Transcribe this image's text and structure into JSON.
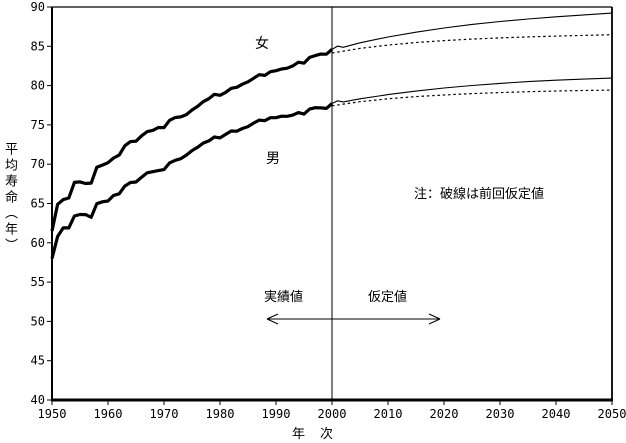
{
  "labels": {
    "female_series": "女",
    "male_series": "男",
    "note": "注：破線は前回仮定値",
    "actual_values": "実績値",
    "assumed_values": "仮定値",
    "xaxis_title": "年　次",
    "yaxis_title": "平均寿命（年）"
  },
  "colors": {
    "line": "#000000",
    "background": "#ffffff"
  },
  "chart_data": {
    "type": "line",
    "title": "",
    "xlabel": "年　次",
    "ylabel": "平均寿命（年）",
    "xlim": [
      1950,
      2050
    ],
    "ylim": [
      40,
      90
    ],
    "x_ticks": [
      1950,
      1960,
      1970,
      1980,
      1990,
      2000,
      2010,
      2020,
      2030,
      2040,
      2050
    ],
    "y_ticks": [
      40,
      45,
      50,
      55,
      60,
      65,
      70,
      75,
      80,
      85,
      90
    ],
    "grid": false,
    "boundary_year": 2000,
    "annotations": {
      "note": "注：破線は前回仮定値",
      "left_of_boundary": "実績値",
      "right_of_boundary": "仮定値"
    },
    "series": [
      {
        "name": "女 実績値",
        "style": "thick-solid",
        "data": [
          [
            1950,
            61.5
          ],
          [
            1951,
            64.9
          ],
          [
            1952,
            65.5
          ],
          [
            1953,
            65.7
          ],
          [
            1954,
            67.69
          ],
          [
            1955,
            67.75
          ],
          [
            1956,
            67.54
          ],
          [
            1957,
            67.6
          ],
          [
            1958,
            69.61
          ],
          [
            1959,
            69.88
          ],
          [
            1960,
            70.19
          ],
          [
            1961,
            70.79
          ],
          [
            1962,
            71.16
          ],
          [
            1963,
            72.34
          ],
          [
            1964,
            72.87
          ],
          [
            1965,
            72.92
          ],
          [
            1966,
            73.61
          ],
          [
            1967,
            74.15
          ],
          [
            1968,
            74.3
          ],
          [
            1969,
            74.67
          ],
          [
            1970,
            74.66
          ],
          [
            1971,
            75.58
          ],
          [
            1972,
            75.94
          ],
          [
            1973,
            76.02
          ],
          [
            1974,
            76.31
          ],
          [
            1975,
            76.89
          ],
          [
            1976,
            77.35
          ],
          [
            1977,
            77.95
          ],
          [
            1978,
            78.33
          ],
          [
            1979,
            78.89
          ],
          [
            1980,
            78.76
          ],
          [
            1981,
            79.13
          ],
          [
            1982,
            79.66
          ],
          [
            1983,
            79.78
          ],
          [
            1984,
            80.18
          ],
          [
            1985,
            80.48
          ],
          [
            1986,
            80.93
          ],
          [
            1987,
            81.39
          ],
          [
            1988,
            81.3
          ],
          [
            1989,
            81.77
          ],
          [
            1990,
            81.9
          ],
          [
            1991,
            82.11
          ],
          [
            1992,
            82.22
          ],
          [
            1993,
            82.51
          ],
          [
            1994,
            82.98
          ],
          [
            1995,
            82.85
          ],
          [
            1996,
            83.59
          ],
          [
            1997,
            83.82
          ],
          [
            1998,
            84.01
          ],
          [
            1999,
            83.99
          ],
          [
            2000,
            84.6
          ]
        ]
      },
      {
        "name": "男 実績値",
        "style": "thick-solid",
        "data": [
          [
            1950,
            58.0
          ],
          [
            1951,
            60.8
          ],
          [
            1952,
            61.9
          ],
          [
            1953,
            61.9
          ],
          [
            1954,
            63.41
          ],
          [
            1955,
            63.6
          ],
          [
            1956,
            63.59
          ],
          [
            1957,
            63.24
          ],
          [
            1958,
            64.98
          ],
          [
            1959,
            65.21
          ],
          [
            1960,
            65.32
          ],
          [
            1961,
            66.03
          ],
          [
            1962,
            66.23
          ],
          [
            1963,
            67.21
          ],
          [
            1964,
            67.67
          ],
          [
            1965,
            67.74
          ],
          [
            1966,
            68.35
          ],
          [
            1967,
            68.91
          ],
          [
            1968,
            69.05
          ],
          [
            1969,
            69.18
          ],
          [
            1970,
            69.31
          ],
          [
            1971,
            70.17
          ],
          [
            1972,
            70.5
          ],
          [
            1973,
            70.7
          ],
          [
            1974,
            71.16
          ],
          [
            1975,
            71.73
          ],
          [
            1976,
            72.15
          ],
          [
            1977,
            72.69
          ],
          [
            1978,
            72.97
          ],
          [
            1979,
            73.46
          ],
          [
            1980,
            73.35
          ],
          [
            1981,
            73.79
          ],
          [
            1982,
            74.22
          ],
          [
            1983,
            74.2
          ],
          [
            1984,
            74.54
          ],
          [
            1985,
            74.78
          ],
          [
            1986,
            75.23
          ],
          [
            1987,
            75.61
          ],
          [
            1988,
            75.54
          ],
          [
            1989,
            75.91
          ],
          [
            1990,
            75.92
          ],
          [
            1991,
            76.11
          ],
          [
            1992,
            76.09
          ],
          [
            1993,
            76.25
          ],
          [
            1994,
            76.57
          ],
          [
            1995,
            76.38
          ],
          [
            1996,
            77.01
          ],
          [
            1997,
            77.19
          ],
          [
            1998,
            77.16
          ],
          [
            1999,
            77.1
          ],
          [
            2000,
            77.72
          ]
        ]
      },
      {
        "name": "女 仮定値（今回）",
        "style": "thin-solid",
        "data": [
          [
            2000,
            84.6
          ],
          [
            2001,
            85.03
          ],
          [
            2002,
            84.87
          ],
          [
            2005,
            85.45
          ],
          [
            2010,
            86.18
          ],
          [
            2015,
            86.8
          ],
          [
            2020,
            87.33
          ],
          [
            2025,
            87.78
          ],
          [
            2030,
            88.15
          ],
          [
            2035,
            88.47
          ],
          [
            2040,
            88.75
          ],
          [
            2045,
            89.0
          ],
          [
            2050,
            89.22
          ]
        ]
      },
      {
        "name": "男 仮定値（今回）",
        "style": "thin-solid",
        "data": [
          [
            2000,
            77.72
          ],
          [
            2001,
            78.07
          ],
          [
            2002,
            77.92
          ],
          [
            2005,
            78.32
          ],
          [
            2010,
            78.85
          ],
          [
            2015,
            79.3
          ],
          [
            2020,
            79.69
          ],
          [
            2025,
            80.01
          ],
          [
            2030,
            80.28
          ],
          [
            2035,
            80.51
          ],
          [
            2040,
            80.69
          ],
          [
            2045,
            80.83
          ],
          [
            2050,
            80.95
          ]
        ]
      },
      {
        "name": "女 前回仮定値",
        "style": "dotted",
        "data": [
          [
            2000,
            84.15
          ],
          [
            2005,
            84.73
          ],
          [
            2010,
            85.15
          ],
          [
            2015,
            85.48
          ],
          [
            2020,
            85.73
          ],
          [
            2025,
            85.92
          ],
          [
            2030,
            86.07
          ],
          [
            2035,
            86.2
          ],
          [
            2040,
            86.3
          ],
          [
            2045,
            86.39
          ],
          [
            2050,
            86.47
          ]
        ]
      },
      {
        "name": "男 前回仮定値",
        "style": "dotted",
        "data": [
          [
            2000,
            77.43
          ],
          [
            2005,
            77.95
          ],
          [
            2010,
            78.32
          ],
          [
            2015,
            78.6
          ],
          [
            2020,
            78.81
          ],
          [
            2025,
            78.98
          ],
          [
            2030,
            79.11
          ],
          [
            2035,
            79.22
          ],
          [
            2040,
            79.31
          ],
          [
            2045,
            79.38
          ],
          [
            2050,
            79.43
          ]
        ]
      }
    ]
  }
}
